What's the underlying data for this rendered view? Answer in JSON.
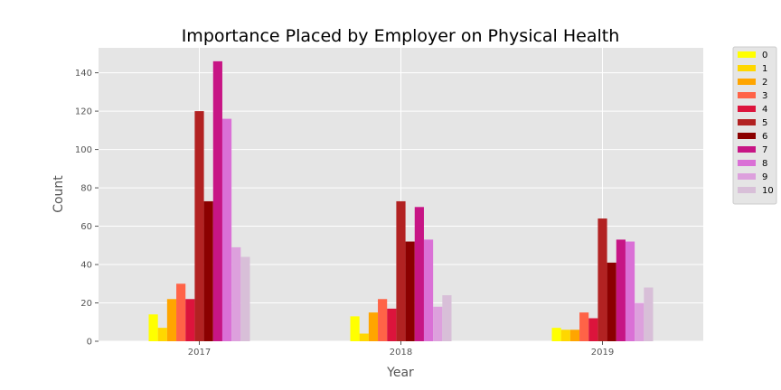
{
  "chart_data": {
    "type": "bar",
    "title": "Importance Placed by Employer on Physical Health",
    "xlabel": "Year",
    "ylabel": "Count",
    "categories": [
      "2017",
      "2018",
      "2019"
    ],
    "ylim": [
      0,
      153
    ],
    "yticks": [
      0,
      20,
      40,
      60,
      80,
      100,
      120,
      140
    ],
    "grid": true,
    "legend_position": "outside-top-right",
    "series": [
      {
        "name": "0",
        "color": "#FFFF00",
        "values": [
          14,
          13,
          7
        ]
      },
      {
        "name": "1",
        "color": "#FFD700",
        "values": [
          7,
          4,
          6
        ]
      },
      {
        "name": "2",
        "color": "#FFA500",
        "values": [
          22,
          15,
          6
        ]
      },
      {
        "name": "3",
        "color": "#FF6347",
        "values": [
          30,
          22,
          15
        ]
      },
      {
        "name": "4",
        "color": "#DC143C",
        "values": [
          22,
          17,
          12
        ]
      },
      {
        "name": "5",
        "color": "#B22222",
        "values": [
          120,
          73,
          64
        ]
      },
      {
        "name": "6",
        "color": "#8B0000",
        "values": [
          73,
          52,
          41
        ]
      },
      {
        "name": "7",
        "color": "#C71585",
        "values": [
          146,
          70,
          53
        ]
      },
      {
        "name": "8",
        "color": "#DA70D6",
        "values": [
          116,
          53,
          52
        ]
      },
      {
        "name": "9",
        "color": "#DDA0DD",
        "values": [
          49,
          18,
          20
        ]
      },
      {
        "name": "10",
        "color": "#D8BFD8",
        "values": [
          44,
          24,
          28
        ]
      }
    ]
  }
}
